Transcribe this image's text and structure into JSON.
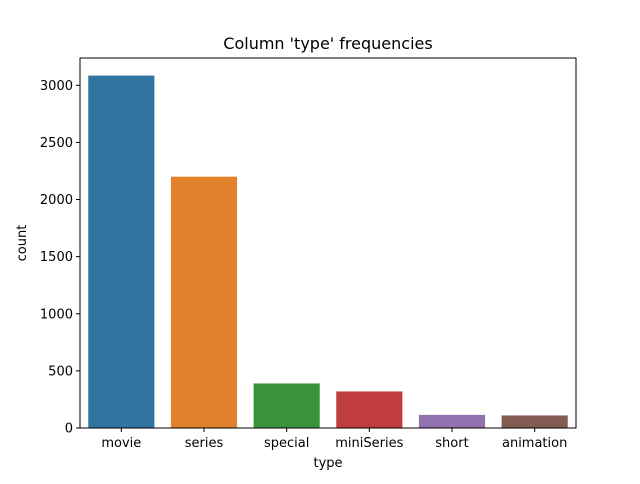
{
  "chart_data": {
    "type": "bar",
    "title": "Column 'type' frequencies",
    "xlabel": "type",
    "ylabel": "count",
    "categories": [
      "movie",
      "series",
      "special",
      "miniSeries",
      "short",
      "animation"
    ],
    "values": [
      3085,
      2200,
      390,
      320,
      115,
      110
    ],
    "colors": [
      "#3274a1",
      "#e1812c",
      "#3a923a",
      "#c03d3e",
      "#9372b2",
      "#845b53"
    ],
    "ylim": [
      0,
      3239
    ],
    "yticks": [
      0,
      500,
      1000,
      1500,
      2000,
      2500,
      3000
    ],
    "ytick_labels": [
      "0",
      "500",
      "1000",
      "1500",
      "2000",
      "2500",
      "3000"
    ],
    "grid": false,
    "legend": "none"
  }
}
